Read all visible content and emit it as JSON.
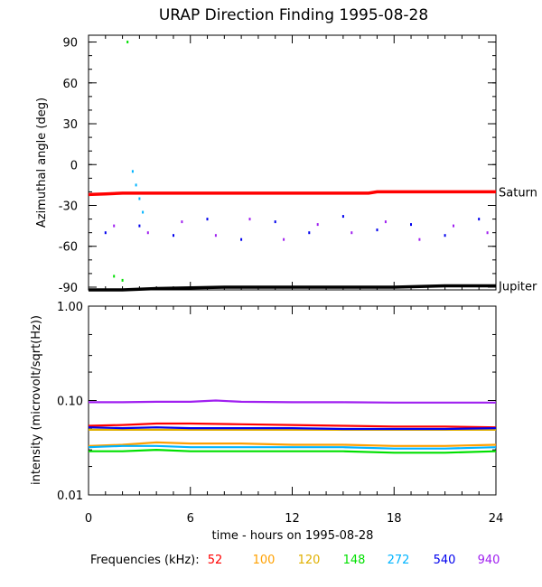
{
  "chart_data": [
    {
      "type": "scatter",
      "title": "URAP Direction Finding  1995-08-28",
      "ylabel": "Azimuthal angle (deg)",
      "xlim": [
        0,
        24
      ],
      "ylim": [
        -92,
        95
      ],
      "yticks": [
        90,
        60,
        30,
        0,
        -30,
        -60,
        -90
      ],
      "reference_lines": [
        {
          "name": "Saturn",
          "color": "#ff0000",
          "points": [
            [
              0,
              -22
            ],
            [
              1,
              -21.5
            ],
            [
              2,
              -21
            ],
            [
              6,
              -21
            ],
            [
              12,
              -21
            ],
            [
              16.5,
              -21
            ],
            [
              17,
              -20
            ],
            [
              24,
              -20
            ]
          ]
        },
        {
          "name": "Jupiter",
          "color": "#000000",
          "points": [
            [
              0,
              -92
            ],
            [
              2,
              -92
            ],
            [
              4,
              -91
            ],
            [
              8,
              -90
            ],
            [
              12,
              -90
            ],
            [
              18,
              -90
            ],
            [
              21,
              -89
            ],
            [
              24,
              -89
            ]
          ]
        }
      ],
      "series": [
        {
          "color": "#0000ee",
          "points": [
            [
              1,
              -50
            ],
            [
              3,
              -45
            ],
            [
              5,
              -52
            ],
            [
              7,
              -40
            ],
            [
              9,
              -55
            ],
            [
              11,
              -42
            ],
            [
              13,
              -50
            ],
            [
              15,
              -38
            ],
            [
              17,
              -48
            ],
            [
              19,
              -44
            ],
            [
              21,
              -52
            ],
            [
              23,
              -40
            ]
          ]
        },
        {
          "color": "#a020f0",
          "points": [
            [
              1.5,
              -45
            ],
            [
              3.5,
              -50
            ],
            [
              5.5,
              -42
            ],
            [
              7.5,
              -52
            ],
            [
              9.5,
              -40
            ],
            [
              11.5,
              -55
            ],
            [
              13.5,
              -44
            ],
            [
              15.5,
              -50
            ],
            [
              17.5,
              -42
            ],
            [
              19.5,
              -55
            ],
            [
              21.5,
              -45
            ],
            [
              23.5,
              -50
            ]
          ]
        },
        {
          "color": "#00e000",
          "points": [
            [
              1.5,
              -82
            ],
            [
              2,
              -85
            ],
            [
              2.3,
              90
            ]
          ]
        },
        {
          "color": "#00b4ff",
          "points": [
            [
              2.6,
              -5
            ],
            [
              2.8,
              -15
            ],
            [
              3,
              -25
            ],
            [
              3.2,
              -35
            ]
          ]
        }
      ]
    },
    {
      "type": "line",
      "ylabel": "intensity (microvolt/sqrt(Hz))",
      "xlabel": "time - hours on 1995-08-28",
      "xlim": [
        0,
        24
      ],
      "xticks": [
        0,
        6,
        12,
        18,
        24
      ],
      "ylim": [
        0.01,
        1.0
      ],
      "yscale": "log",
      "yticks": [
        "1.00",
        "0.10",
        "0.01"
      ],
      "legend_title": "Frequencies (kHz):",
      "series": [
        {
          "name": "52",
          "color": "#ff0000",
          "x": [
            0,
            2,
            4,
            6,
            9,
            12,
            15,
            18,
            21,
            24
          ],
          "values": [
            0.054,
            0.055,
            0.057,
            0.057,
            0.056,
            0.055,
            0.054,
            0.053,
            0.053,
            0.052
          ]
        },
        {
          "name": "100",
          "color": "#ffa000",
          "x": [
            0,
            2,
            4,
            6,
            9,
            12,
            15,
            18,
            21,
            24
          ],
          "values": [
            0.033,
            0.034,
            0.036,
            0.035,
            0.035,
            0.034,
            0.034,
            0.033,
            0.033,
            0.034
          ]
        },
        {
          "name": "120",
          "color": "#e0b000",
          "x": [
            0,
            2,
            4,
            6,
            9,
            12,
            15,
            18,
            21,
            24
          ],
          "values": [
            0.049,
            0.049,
            0.049,
            0.049,
            0.049,
            0.049,
            0.049,
            0.049,
            0.049,
            0.049
          ]
        },
        {
          "name": "148",
          "color": "#00e000",
          "x": [
            0,
            2,
            4,
            6,
            9,
            12,
            15,
            18,
            21,
            24
          ],
          "values": [
            0.029,
            0.029,
            0.03,
            0.029,
            0.029,
            0.029,
            0.029,
            0.028,
            0.028,
            0.029
          ]
        },
        {
          "name": "272",
          "color": "#00b4ff",
          "x": [
            0,
            2,
            4,
            6,
            9,
            12,
            15,
            18,
            21,
            24
          ],
          "values": [
            0.032,
            0.033,
            0.033,
            0.032,
            0.032,
            0.032,
            0.032,
            0.031,
            0.031,
            0.032
          ]
        },
        {
          "name": "540",
          "color": "#0000ee",
          "x": [
            0,
            2,
            4,
            6,
            9,
            12,
            15,
            18,
            21,
            24
          ],
          "values": [
            0.052,
            0.051,
            0.052,
            0.051,
            0.051,
            0.051,
            0.05,
            0.05,
            0.05,
            0.051
          ]
        },
        {
          "name": "940",
          "color": "#a020f0",
          "x": [
            0,
            2,
            4,
            6,
            7.5,
            9,
            12,
            15,
            18,
            21,
            24
          ],
          "values": [
            0.096,
            0.096,
            0.097,
            0.097,
            0.1,
            0.097,
            0.096,
            0.096,
            0.095,
            0.095,
            0.095
          ]
        }
      ]
    }
  ]
}
